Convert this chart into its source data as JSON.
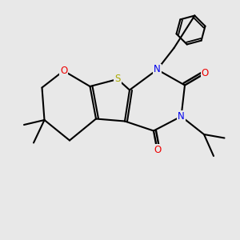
{
  "background_color": "#e8e8e8",
  "bond_color": "#000000",
  "bond_width": 1.5,
  "S_color": "#aaaa00",
  "N_color": "#0000ee",
  "O_color": "#ee0000",
  "C_color": "#000000",
  "xlim": [
    0,
    10
  ],
  "ylim": [
    0,
    10
  ]
}
